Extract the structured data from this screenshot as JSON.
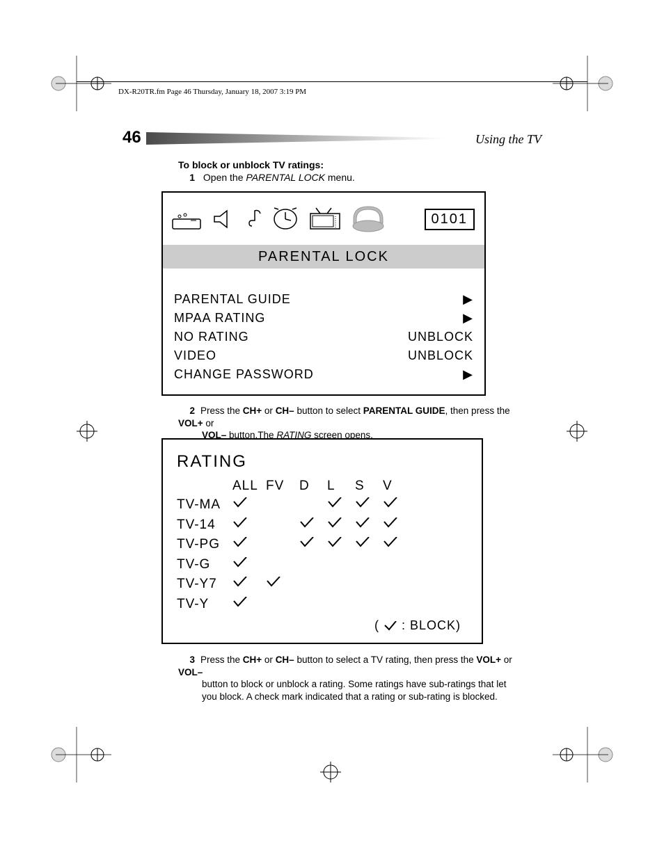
{
  "header_line": "DX-R20TR.fm  Page 46  Thursday, January 18, 2007  3:19 PM",
  "page_number": "46",
  "section_title": "Using the TV",
  "intro": {
    "heading": "To block or unblock TV ratings:",
    "step1_num": "1",
    "step1_a": "Open the ",
    "step1_b": "PARENTAL LOCK",
    "step1_c": " menu."
  },
  "menu": {
    "code": "0101",
    "title": "PARENTAL LOCK",
    "items": [
      {
        "label": "PARENTAL GUIDE",
        "value": "▶"
      },
      {
        "label": "MPAA RATING",
        "value": "▶"
      },
      {
        "label": "NO RATING",
        "value": "UNBLOCK"
      },
      {
        "label": "VIDEO",
        "value": "UNBLOCK"
      },
      {
        "label": "CHANGE PASSWORD",
        "value": "▶"
      }
    ]
  },
  "step2": {
    "num": "2",
    "a": "Press the ",
    "b": "CH+",
    "c": " or ",
    "d": "CH–",
    "e": " button to select ",
    "f": "PARENTAL GUIDE",
    "g": ", then press the ",
    "h": "VOL+",
    "i": " or ",
    "j": "VOL–",
    "k": " button.The ",
    "l": "RATING",
    "m": " screen opens."
  },
  "rating": {
    "title": "RATING",
    "cols": [
      "",
      "ALL",
      "FV",
      "D",
      "L",
      "S",
      "V"
    ],
    "rows": [
      {
        "label": "TV-MA",
        "checks": [
          true,
          false,
          false,
          true,
          true,
          true
        ]
      },
      {
        "label": "TV-14",
        "checks": [
          true,
          false,
          true,
          true,
          true,
          true
        ]
      },
      {
        "label": "TV-PG",
        "checks": [
          true,
          false,
          true,
          true,
          true,
          true
        ]
      },
      {
        "label": "TV-G",
        "checks": [
          true,
          false,
          false,
          false,
          false,
          false
        ]
      },
      {
        "label": "TV-Y7",
        "checks": [
          true,
          true,
          false,
          false,
          false,
          false
        ]
      },
      {
        "label": "TV-Y",
        "checks": [
          true,
          false,
          false,
          false,
          false,
          false
        ]
      }
    ],
    "legend_a": "( ",
    "legend_b": " : BLOCK)"
  },
  "step3": {
    "num": "3",
    "a": "Press the ",
    "b": "CH+",
    "c": " or ",
    "d": "CH–",
    "e": " button to select a TV rating, then press the ",
    "f": "VOL+",
    "g": " or ",
    "h": "VOL–",
    "i": " button to block or unblock a rating. Some ratings have sub-ratings that let you block. A check mark indicated that a rating or sub-rating is blocked."
  }
}
